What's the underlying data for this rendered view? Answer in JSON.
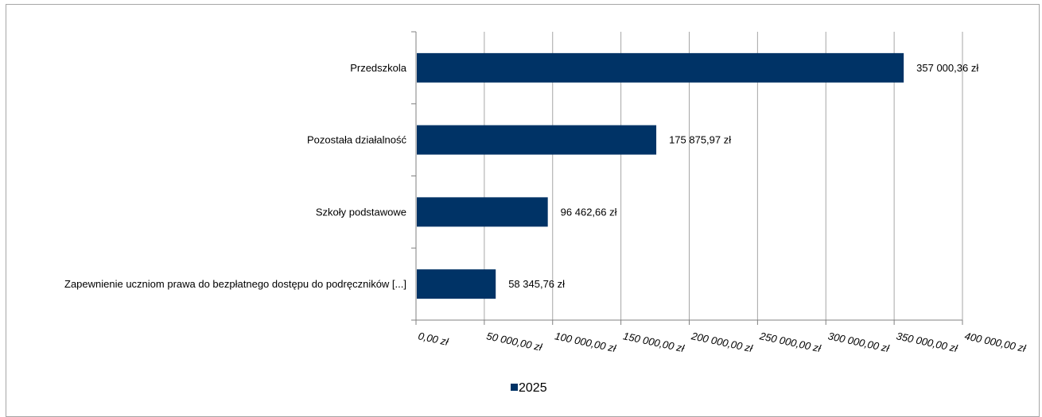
{
  "chart_data": {
    "type": "bar",
    "orientation": "horizontal",
    "categories": [
      "Przedszkola",
      "Pozostała działalność",
      "Szkoły podstawowe",
      "Zapewnienie uczniom prawa do bezpłatnego dostępu do podręczników [...]"
    ],
    "series": [
      {
        "name": "2025",
        "values": [
          357000.36,
          175875.97,
          96462.66,
          58345.76
        ],
        "value_labels": [
          "357 000,36 zł",
          "175 875,97 zł",
          "96 462,66 zł",
          "58 345,76 zł"
        ],
        "color": "#003366"
      }
    ],
    "xlim": [
      0,
      400000
    ],
    "x_ticks": [
      0,
      50000,
      100000,
      150000,
      200000,
      250000,
      300000,
      350000,
      400000
    ],
    "x_tick_labels": [
      "0,00 zł",
      "50 000,00 zł",
      "100 000,00 zł",
      "150 000,00 zł",
      "200 000,00 zł",
      "250 000,00 zł",
      "300 000,00 zł",
      "350 000,00 zł",
      "400 000,00 zł"
    ],
    "grid": true,
    "gridline_color": "#a6a6a6",
    "legend_position": "bottom",
    "title": "",
    "xlabel": "",
    "ylabel": ""
  }
}
